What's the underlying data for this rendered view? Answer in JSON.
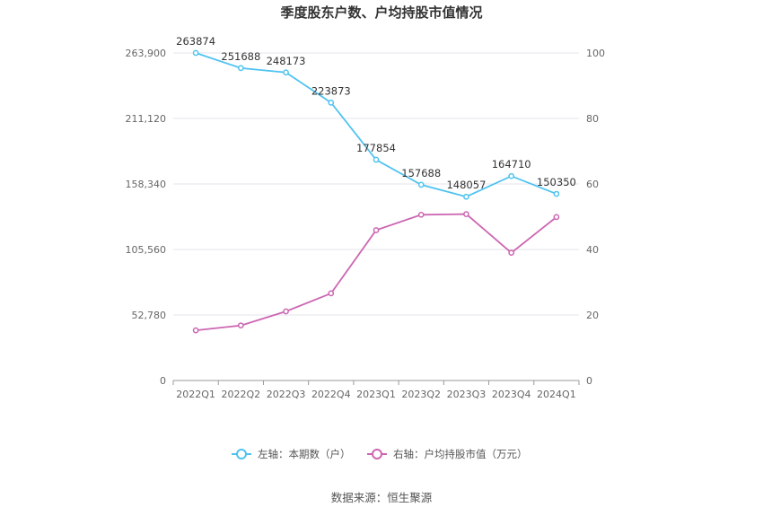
{
  "chart_data": {
    "type": "line",
    "title": "季度股东户数、户均持股市值情况",
    "categories": [
      "2022Q1",
      "2022Q2",
      "2022Q3",
      "2022Q4",
      "2023Q1",
      "2023Q2",
      "2023Q3",
      "2023Q4",
      "2024Q1"
    ],
    "left_axis": {
      "ticks": [
        "0",
        "52,780",
        "105,560",
        "158,340",
        "211,120",
        "263,900"
      ],
      "range": [
        0,
        263900
      ]
    },
    "right_axis": {
      "ticks": [
        "0",
        "20",
        "40",
        "60",
        "80",
        "100"
      ],
      "range": [
        0,
        100
      ]
    },
    "series": [
      {
        "name": "左轴：本期数（户）",
        "axis": "left",
        "color": "#4fc3f0",
        "values": [
          263874,
          251688,
          248173,
          223873,
          177854,
          157688,
          148057,
          164710,
          150350
        ],
        "labels": [
          "263874",
          "251688",
          "248173",
          "223873",
          "177854",
          "157688",
          "148057",
          "164710",
          "150350"
        ]
      },
      {
        "name": "右轴：户均持股市值（万元）",
        "axis": "right",
        "color": "#cc66b2",
        "values": [
          15.3,
          16.8,
          21.1,
          26.6,
          45.9,
          50.6,
          50.8,
          39.0,
          49.9
        ]
      }
    ],
    "grid": true,
    "legend_position": "bottom"
  },
  "footer": {
    "source": "数据来源：恒生聚源"
  }
}
